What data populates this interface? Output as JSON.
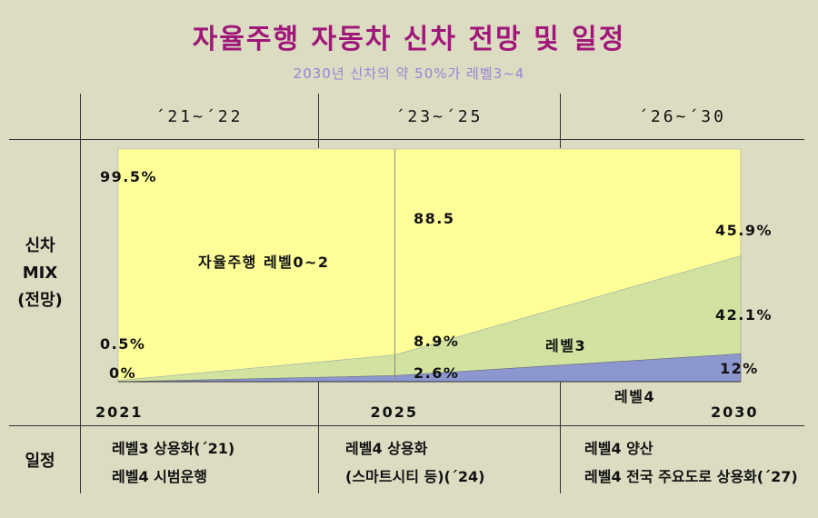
{
  "title": "자율주행 자동차 신차 전망 및 일정",
  "subtitle": "2030년 신차의 약 50%가 레벨3~4",
  "periods": [
    "´21~´22",
    "´23~´25",
    "´26~´30"
  ],
  "row_labels": {
    "mix": [
      "신차",
      "MIX",
      "(전망)"
    ],
    "schedule": "일정"
  },
  "schedule": [
    [
      "레벨3 상용화(´21)",
      "레벨4 시범운행"
    ],
    [
      "레벨4 상용화",
      "(스마트시티 등)(´24)"
    ],
    [
      "레벨4 양산",
      "레벨4 전국 주요도로 상용화(´27)"
    ]
  ],
  "colors": {
    "level0_2": "#ffff99",
    "level3": "#d2e2a0",
    "level4": "#8c96cf",
    "title": "#a0177a",
    "subtitle": "#9b82d6"
  },
  "chart_data": {
    "type": "area",
    "stacked": true,
    "x": [
      2021,
      2025,
      2030
    ],
    "x_tick_labels": [
      "2021",
      "2025",
      "2030"
    ],
    "ylim": [
      0,
      100
    ],
    "series": [
      {
        "name": "레벨4",
        "values": [
          0,
          2.6,
          12
        ],
        "labels": [
          "0%",
          "2.6%",
          "12%"
        ]
      },
      {
        "name": "레벨3",
        "values": [
          0.5,
          8.9,
          42.1
        ],
        "labels": [
          "0.5%",
          "8.9%",
          "42.1%"
        ]
      },
      {
        "name": "자율주행 레벨0~2",
        "values": [
          99.5,
          88.5,
          45.9
        ],
        "labels": [
          "99.5%",
          "88.5",
          "45.9%"
        ]
      }
    ]
  }
}
